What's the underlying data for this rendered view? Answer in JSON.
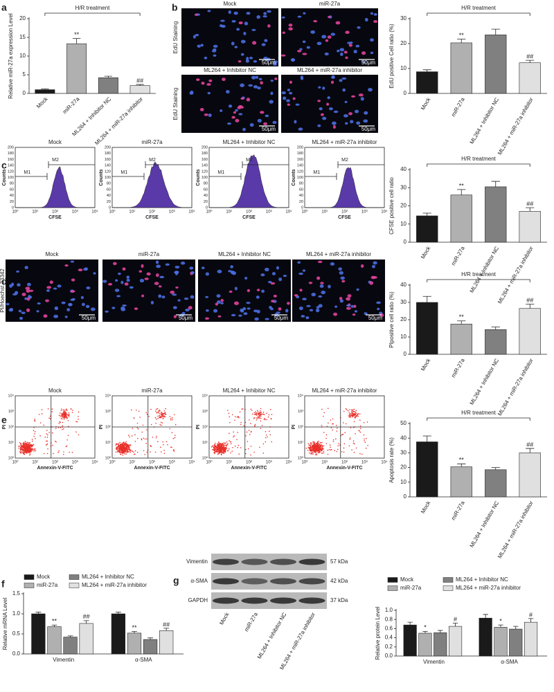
{
  "chart_data": [
    {
      "type": "bar",
      "panel": "a",
      "y_label": "Relative miR-27a expression Level",
      "bracket_label": "H/R treatment",
      "categories": [
        "Mock",
        "miR-27a",
        "ML264 + Inhibitor NC",
        "ML264 + miR-27a inhibitor"
      ],
      "values": [
        1,
        13.3,
        4.2,
        2.1
      ],
      "errors": [
        0.2,
        1.4,
        0.4,
        0.3
      ],
      "annotations": [
        null,
        "**",
        null,
        "##"
      ],
      "colors": [
        "#1a1a1a",
        "#b0b0b0",
        "#808080",
        "#e0e0e0"
      ],
      "ylim": [
        0,
        20
      ],
      "yticks": [
        0,
        5,
        10,
        15,
        20
      ]
    },
    {
      "type": "bar",
      "panel": "b",
      "y_label": "EdU positive Cell ratio (%)",
      "bracket_label": "H/R treatment",
      "categories": [
        "Mock",
        "miR-27a",
        "ML264 + Inhibitor NC",
        "ML264 + miR-27a inhibitor"
      ],
      "values": [
        8.7,
        20.3,
        23.5,
        12.3
      ],
      "errors": [
        0.8,
        1.5,
        2.3,
        1.0
      ],
      "annotations": [
        null,
        "**",
        null,
        "##"
      ],
      "colors": [
        "#1a1a1a",
        "#b0b0b0",
        "#808080",
        "#e0e0e0"
      ],
      "ylim": [
        0,
        30
      ],
      "yticks": [
        0,
        10,
        20,
        30
      ]
    },
    {
      "type": "bar",
      "panel": "c",
      "y_label": "CFSE positive cell ratio",
      "bracket_label": "H/R treatment",
      "categories": [
        "Mock",
        "miR-27a",
        "ML264 + Inhibitor NC",
        "ML264 + miR-27a inhibitor"
      ],
      "values": [
        14.5,
        26,
        30.5,
        17
      ],
      "errors": [
        1.5,
        3,
        3,
        2
      ],
      "annotations": [
        null,
        "**",
        null,
        "##"
      ],
      "colors": [
        "#1a1a1a",
        "#b0b0b0",
        "#808080",
        "#e0e0e0"
      ],
      "ylim": [
        0,
        40
      ],
      "yticks": [
        0,
        10,
        20,
        30,
        40
      ]
    },
    {
      "type": "bar",
      "panel": "d",
      "y_label": "PIpositive cell ratio (%)",
      "bracket_label": "H/R treatment",
      "categories": [
        "Mock",
        "miR-27a",
        "ML264 + Inhibitor NC",
        "ML264 + miR-27a inhibitor"
      ],
      "values": [
        30,
        17.5,
        14.3,
        26.5
      ],
      "errors": [
        3.5,
        1.8,
        1.5,
        2.5
      ],
      "annotations": [
        null,
        "**",
        null,
        "##"
      ],
      "colors": [
        "#1a1a1a",
        "#b0b0b0",
        "#808080",
        "#e0e0e0"
      ],
      "ylim": [
        0,
        40
      ],
      "yticks": [
        0,
        10,
        20,
        30,
        40
      ]
    },
    {
      "type": "bar",
      "panel": "e",
      "y_label": "Apoptosis rate (%)",
      "bracket_label": "H/R treatment",
      "categories": [
        "Mock",
        "miR-27a",
        "ML264 + Inhibitor NC",
        "ML264 + miR-27a inhibitor"
      ],
      "values": [
        37.5,
        20.5,
        18.5,
        30
      ],
      "errors": [
        4,
        2,
        1.5,
        3
      ],
      "annotations": [
        null,
        "**",
        null,
        "##"
      ],
      "colors": [
        "#1a1a1a",
        "#b0b0b0",
        "#808080",
        "#e0e0e0"
      ],
      "ylim": [
        0,
        50
      ],
      "yticks": [
        0,
        10,
        20,
        30,
        40,
        50
      ]
    },
    {
      "type": "bar",
      "panel": "f",
      "y_label": "Relative mRNA Level",
      "categories": [
        "Vimentin",
        "α-SMA"
      ],
      "series": [
        {
          "name": "Mock",
          "color": "#1a1a1a",
          "values": [
            1.0,
            1.0
          ],
          "errors": [
            0.04,
            0.04
          ],
          "annotations": [
            null,
            null
          ]
        },
        {
          "name": "miR-27a",
          "color": "#b0b0b0",
          "values": [
            0.68,
            0.52
          ],
          "errors": [
            0.04,
            0.04
          ],
          "annotations": [
            "**",
            "**"
          ]
        },
        {
          "name": "ML264 + Inhibitor NC",
          "color": "#808080",
          "values": [
            0.42,
            0.36
          ],
          "errors": [
            0.03,
            0.04
          ],
          "annotations": [
            null,
            null
          ]
        },
        {
          "name": "ML264 + miR-27a inhibitor",
          "color": "#e0e0e0",
          "values": [
            0.76,
            0.58
          ],
          "errors": [
            0.07,
            0.06
          ],
          "annotations": [
            "##",
            "##"
          ]
        }
      ],
      "ylim": [
        0,
        1.5
      ],
      "yticks": [
        {
          "value": 0,
          "label": "0.0"
        },
        0.5,
        {
          "value": 1,
          "label": "1.0"
        },
        1.5
      ]
    },
    {
      "type": "bar",
      "panel": "g",
      "y_label": "Relative protein Level",
      "categories": [
        "Vimentin",
        "α-SMA"
      ],
      "series": [
        {
          "name": "Mock",
          "color": "#1a1a1a",
          "values": [
            0.68,
            0.83
          ],
          "errors": [
            0.06,
            0.08
          ],
          "annotations": [
            null,
            null
          ]
        },
        {
          "name": "miR-27a",
          "color": "#b0b0b0",
          "values": [
            0.5,
            0.63
          ],
          "errors": [
            0.04,
            0.05
          ],
          "annotations": [
            "*",
            "*"
          ]
        },
        {
          "name": "ML264 + Inhibitor NC",
          "color": "#808080",
          "values": [
            0.51,
            0.59
          ],
          "errors": [
            0.05,
            0.06
          ],
          "annotations": [
            null,
            null
          ]
        },
        {
          "name": "ML264 + miR-27a inhibitor",
          "color": "#e0e0e0",
          "values": [
            0.65,
            0.74
          ],
          "errors": [
            0.07,
            0.08
          ],
          "annotations": [
            "#",
            "#"
          ]
        }
      ],
      "ylim": [
        0,
        1
      ],
      "yticks": [
        {
          "value": 0,
          "label": "0.0"
        },
        0.2,
        0.4,
        0.6,
        0.8,
        {
          "value": 1,
          "label": "1.0"
        }
      ]
    }
  ],
  "edu_images": {
    "side_label": "EdU Staining",
    "scale": "50μm"
  },
  "cfse_flow": {
    "y_label": "Counts",
    "x_label": "CFSE",
    "gates": [
      "M1",
      "M2"
    ],
    "yticks": [
      0,
      20,
      40,
      60,
      80,
      100,
      120,
      140,
      160,
      180,
      200
    ],
    "xticks": [
      "10⁰",
      "10¹",
      "10²",
      "10³",
      "10⁴"
    ]
  },
  "pi_images": {
    "side_label": "PI/Hoechst 33342",
    "scale": "50μm"
  },
  "annexin_flow": {
    "y_label": "PI",
    "x_label": "Annexin-V-FITC",
    "ticks": [
      "10⁰",
      "10¹",
      "10²",
      "10³",
      "10⁴"
    ]
  },
  "blot": {
    "rows": [
      {
        "name": "Vimentin",
        "size": "57 kDa"
      },
      {
        "name": "α-SMA",
        "size": "42 kDa"
      },
      {
        "name": "GAPDH",
        "size": "37 kDa"
      }
    ],
    "lanes": [
      "Mock",
      "miR-27a",
      "ML264 + Inhibitor NC",
      "ML264 + miR-27a inhibitor"
    ]
  }
}
